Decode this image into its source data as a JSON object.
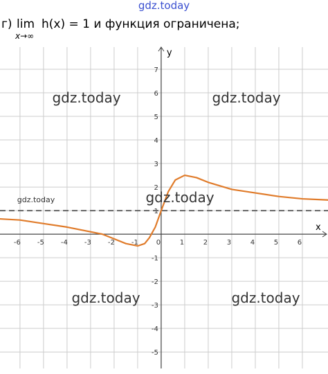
{
  "top_watermark": "gdz.today",
  "header": {
    "label": "г)",
    "lim": "lim",
    "lim_sub": "x→∞",
    "rest": "h(x) = 1 и функция ограничена;"
  },
  "chart_data": {
    "type": "line",
    "x_label": "x",
    "y_label": "y",
    "x": [
      -6.9,
      -6,
      -5,
      -4,
      -3,
      -2.5,
      -2,
      -1.5,
      -1,
      -0.7,
      -0.5,
      -0.25,
      0,
      0.3,
      0.6,
      1,
      1.5,
      2,
      3,
      4,
      5,
      6,
      7.1
    ],
    "series": [
      {
        "name": "h(x)",
        "color": "#e07b2a",
        "values": [
          0.65,
          0.6,
          0.45,
          0.3,
          0.1,
          0,
          -0.2,
          -0.4,
          -0.5,
          -0.4,
          -0.15,
          0.3,
          1,
          1.8,
          2.3,
          2.5,
          2.4,
          2.2,
          1.9,
          1.75,
          1.6,
          1.5,
          1.45
        ]
      }
    ],
    "asymptote": 1,
    "xlim": [
      -6.85,
      7.09
    ],
    "ylim": [
      -5.7,
      7.94
    ],
    "xticks": [
      -6,
      -5,
      -4,
      -3,
      -2,
      -1,
      0,
      1,
      2,
      3,
      4,
      5,
      6
    ],
    "yticks": [
      -5,
      -4,
      -3,
      -2,
      -1,
      1,
      2,
      3,
      4,
      5,
      6,
      7
    ],
    "grid": true,
    "watermarks": [
      "gdz.today",
      "gdz.today",
      "gdz.today",
      "gdz.today",
      "gdz.today",
      "gdz.today"
    ]
  }
}
